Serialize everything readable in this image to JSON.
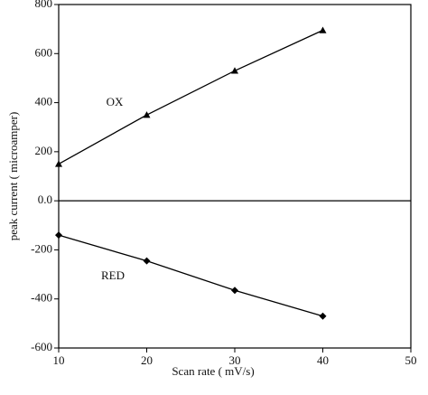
{
  "chart_data": {
    "type": "line",
    "x_label": "Scan rate ( mV/s)",
    "y_label": "peak current ( microamper)",
    "annotations": [
      "OX",
      "RED"
    ],
    "x": [
      10,
      20,
      30,
      40
    ],
    "series": [
      {
        "name": "OX",
        "color": "#000000",
        "marker": "triangle",
        "values": [
          150,
          350,
          530,
          695
        ]
      },
      {
        "name": "RED",
        "color": "#000000",
        "marker": "diamond",
        "values": [
          -140,
          -245,
          -365,
          -470
        ]
      }
    ],
    "xlim": [
      10,
      50
    ],
    "xticks": [
      10,
      20,
      30,
      40,
      50
    ],
    "ylim": [
      -600,
      800
    ],
    "yticks": [
      -600,
      -400,
      -200,
      {
        "value": 0,
        "label": "0.0"
      },
      200,
      400,
      600,
      800
    ],
    "legend": false
  }
}
